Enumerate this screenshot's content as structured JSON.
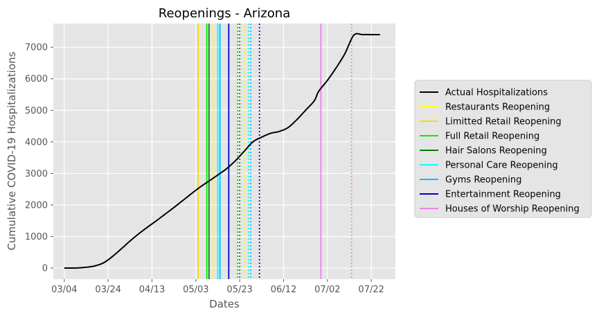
{
  "chart_data": {
    "type": "line",
    "title": "Reopenings - Arizona",
    "xlabel": "Dates",
    "ylabel": "Cumulative COVID-19 Hospitalizations",
    "x_is_date": true,
    "year": 2020,
    "xlim": [
      "2020-02-28",
      "2020-08-02"
    ],
    "ylim": [
      -350,
      7750
    ],
    "x_ticks": [
      "2020-03-04",
      "2020-03-24",
      "2020-04-13",
      "2020-05-03",
      "2020-05-23",
      "2020-06-12",
      "2020-07-02",
      "2020-07-22"
    ],
    "x_tick_labels": [
      "03/04",
      "03/24",
      "04/13",
      "05/03",
      "05/23",
      "06/12",
      "07/02",
      "07/22"
    ],
    "y_ticks": [
      0,
      1000,
      2000,
      3000,
      4000,
      5000,
      6000,
      7000
    ],
    "y_tick_labels": [
      "0",
      "1000",
      "2000",
      "3000",
      "4000",
      "5000",
      "6000",
      "7000"
    ],
    "grid": true,
    "legend_position": "right-outside",
    "series": [
      {
        "name": "Actual Hospitalizations",
        "color": "#000000",
        "x": [
          "2020-03-04",
          "2020-03-10",
          "2020-03-14",
          "2020-03-18",
          "2020-03-22",
          "2020-03-26",
          "2020-03-30",
          "2020-04-03",
          "2020-04-07",
          "2020-04-11",
          "2020-04-15",
          "2020-04-19",
          "2020-04-23",
          "2020-04-27",
          "2020-05-01",
          "2020-05-05",
          "2020-05-09",
          "2020-05-13",
          "2020-05-17",
          "2020-05-21",
          "2020-05-25",
          "2020-05-29",
          "2020-06-02",
          "2020-06-06",
          "2020-06-10",
          "2020-06-14",
          "2020-06-18",
          "2020-06-22",
          "2020-06-26",
          "2020-06-28",
          "2020-07-02",
          "2020-07-06",
          "2020-07-10",
          "2020-07-14",
          "2020-07-18",
          "2020-07-22",
          "2020-07-26"
        ],
        "y": [
          0,
          5,
          25,
          70,
          170,
          370,
          610,
          860,
          1090,
          1300,
          1500,
          1710,
          1920,
          2140,
          2360,
          2570,
          2760,
          2950,
          3150,
          3400,
          3700,
          4000,
          4150,
          4270,
          4330,
          4450,
          4700,
          5000,
          5300,
          5600,
          5950,
          6350,
          6800,
          7380,
          7400,
          7400,
          7400
        ]
      }
    ],
    "events": [
      {
        "name": "Restaurants Reopening",
        "color": "#ffff00",
        "date": "2020-05-11",
        "dotted_date": "2020-05-25"
      },
      {
        "name": "Limitted Retail Reopening",
        "color": "#ffd700",
        "date": "2020-05-04",
        "dotted_date": "2020-05-18"
      },
      {
        "name": "Full Retail Reopening",
        "color": "#00ee00",
        "date": "2020-05-08",
        "dotted_date": "2020-05-22"
      },
      {
        "name": "Hair Salons Reopening",
        "color": "#008000",
        "date": "2020-05-09",
        "dotted_date": "2020-05-23"
      },
      {
        "name": "Personal Care Reopening",
        "color": "#00ffff",
        "date": "2020-05-13",
        "dotted_date": "2020-05-27"
      },
      {
        "name": "Gyms Reopening",
        "color": "#00bfff",
        "date": "2020-05-14",
        "dotted_date": "2020-05-28"
      },
      {
        "name": "Entertainment Reopening",
        "color": "#0000cd",
        "date": "2020-05-18",
        "dotted_date": "2020-06-01"
      },
      {
        "name": "Houses of Worship Reopening",
        "color": "#ee82ee",
        "date": "2020-06-29",
        "dotted_date": "2020-07-13"
      }
    ]
  }
}
